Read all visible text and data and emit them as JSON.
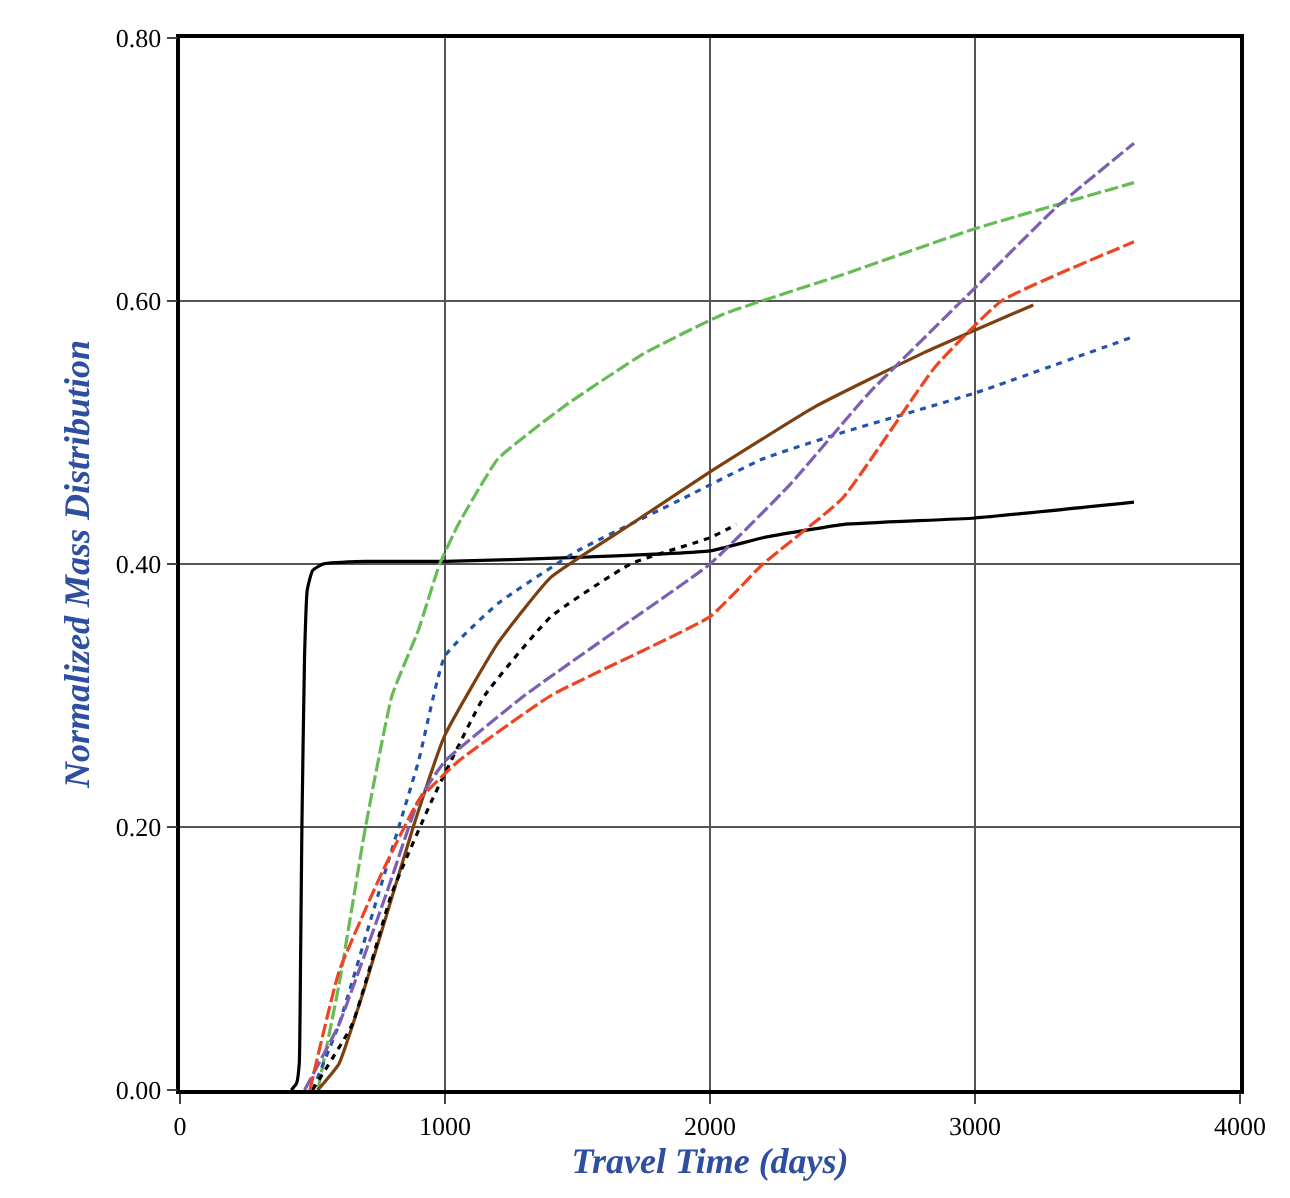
{
  "chart_data": {
    "type": "line",
    "xlabel": "Travel Time (days)",
    "ylabel": "Normalized Mass Distribution",
    "xlim": [
      0,
      4000
    ],
    "xticks": [
      0,
      1000,
      2000,
      3000,
      4000
    ],
    "ylim": [
      0,
      0.8
    ],
    "yticks": [
      {
        "value": 0,
        "label": "0.00"
      },
      {
        "value": 0.2,
        "label": "0.20"
      },
      {
        "value": 0.4,
        "label": "0.40"
      },
      {
        "value": 0.6,
        "label": "0.60"
      },
      {
        "value": 0.8,
        "label": "0.80"
      }
    ],
    "grid": true,
    "marker": "none",
    "series": [
      {
        "color": "#000000",
        "line_style": "solid",
        "x": [
          420,
          440,
          450,
          455,
          460,
          470,
          480,
          500,
          540,
          700,
          1000,
          1500,
          2000,
          2200,
          2500,
          3000,
          3600
        ],
        "values": [
          0,
          0.005,
          0.02,
          0.1,
          0.2,
          0.33,
          0.38,
          0.395,
          0.4,
          0.402,
          0.402,
          0.405,
          0.41,
          0.42,
          0.43,
          0.435,
          0.447
        ]
      },
      {
        "color": "#66bb55",
        "line_style": "dashed",
        "x": [
          520,
          600,
          700,
          800,
          900,
          980,
          1050,
          1200,
          1450,
          1750,
          2050,
          2500,
          3000,
          3600
        ],
        "values": [
          0,
          0.08,
          0.2,
          0.3,
          0.35,
          0.4,
          0.43,
          0.48,
          0.52,
          0.56,
          0.59,
          0.62,
          0.655,
          0.69
        ]
      },
      {
        "color": "#2255aa",
        "line_style": "dotted",
        "x": [
          500,
          600,
          750,
          900,
          1000,
          1200,
          1500,
          1900,
          2200,
          2500,
          3000,
          3600
        ],
        "values": [
          0,
          0.05,
          0.15,
          0.25,
          0.33,
          0.37,
          0.41,
          0.45,
          0.48,
          0.5,
          0.53,
          0.573
        ]
      },
      {
        "color": "#7b3f10",
        "line_style": "solid",
        "x": [
          520,
          600,
          700,
          880,
          1000,
          1200,
          1400,
          1700,
          2000,
          2400,
          2800,
          3220
        ],
        "values": [
          0,
          0.02,
          0.08,
          0.2,
          0.27,
          0.34,
          0.39,
          0.43,
          0.47,
          0.52,
          0.56,
          0.597
        ]
      },
      {
        "color": "#000000",
        "line_style": "dotted",
        "x": [
          500,
          650,
          800,
          950,
          1150,
          1400,
          1700,
          2000,
          2100
        ],
        "values": [
          0,
          0.05,
          0.15,
          0.22,
          0.3,
          0.36,
          0.4,
          0.42,
          0.43
        ]
      },
      {
        "color": "#7b5fb0",
        "line_style": "dashed",
        "x": [
          470,
          600,
          780,
          900,
          1000,
          1300,
          1650,
          2000,
          2300,
          2600,
          3000,
          3300,
          3600
        ],
        "values": [
          0,
          0.05,
          0.15,
          0.22,
          0.25,
          0.3,
          0.35,
          0.4,
          0.46,
          0.53,
          0.61,
          0.67,
          0.72
        ]
      },
      {
        "color": "#ee4422",
        "line_style": "dashed",
        "x": [
          490,
          600,
          750,
          900,
          1050,
          1400,
          2000,
          2200,
          2500,
          2850,
          3100,
          3600
        ],
        "values": [
          0,
          0.09,
          0.16,
          0.22,
          0.25,
          0.3,
          0.36,
          0.4,
          0.45,
          0.55,
          0.6,
          0.645
        ]
      }
    ]
  }
}
